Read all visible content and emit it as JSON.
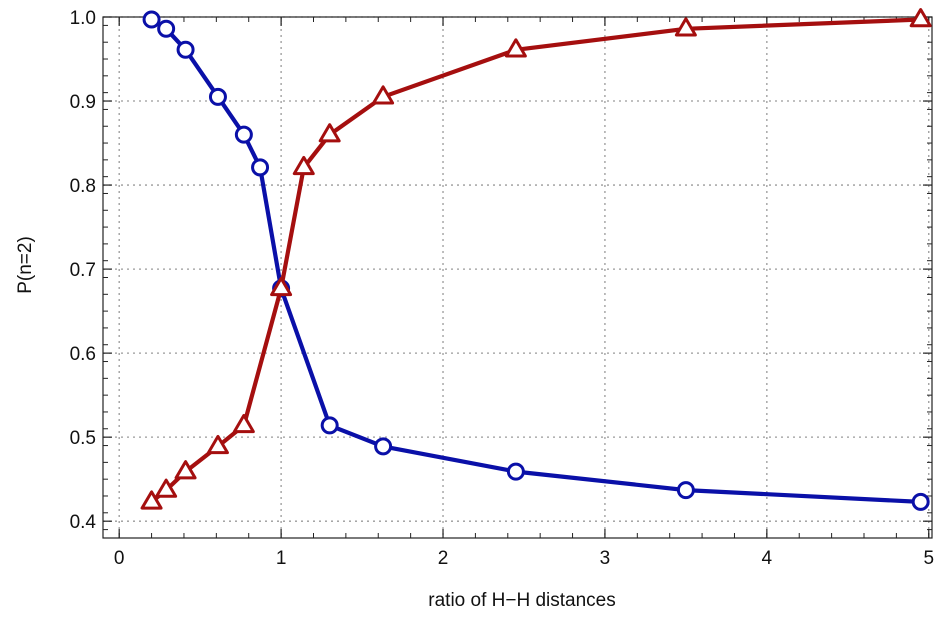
{
  "chart_data": {
    "type": "line",
    "title": "",
    "xlabel": "ratio of H−H distances",
    "ylabel": "P(n=2)",
    "xlim": [
      -0.1,
      5.02
    ],
    "ylim": [
      0.38,
      1.0
    ],
    "grid": true,
    "legend": "none",
    "x_ticks": [
      0,
      1,
      2,
      3,
      4,
      5
    ],
    "y_ticks": [
      0.4,
      0.5,
      0.6,
      0.7,
      0.8,
      0.9,
      1.0
    ],
    "x_tick_labels": [
      "0",
      "1",
      "2",
      "3",
      "4",
      "5"
    ],
    "y_tick_labels": [
      "0.4",
      "0.5",
      "0.6",
      "0.7",
      "0.8",
      "0.9",
      "1.0"
    ],
    "series": [
      {
        "marker": "circle",
        "color": "#0a10a8",
        "x": [
          0.2,
          0.29,
          0.41,
          0.61,
          0.77,
          0.87,
          1.0,
          1.3,
          1.63,
          2.45,
          3.5,
          4.95
        ],
        "y": [
          0.997,
          0.986,
          0.961,
          0.905,
          0.86,
          0.821,
          0.677,
          0.514,
          0.489,
          0.459,
          0.437,
          0.423
        ]
      },
      {
        "marker": "triangle",
        "color": "#a50f0f",
        "x": [
          0.2,
          0.29,
          0.41,
          0.61,
          0.77,
          1.0,
          1.14,
          1.3,
          1.63,
          2.45,
          3.5,
          4.95
        ],
        "y": [
          0.423,
          0.437,
          0.459,
          0.489,
          0.514,
          0.677,
          0.821,
          0.86,
          0.905,
          0.961,
          0.986,
          0.997
        ]
      }
    ]
  }
}
